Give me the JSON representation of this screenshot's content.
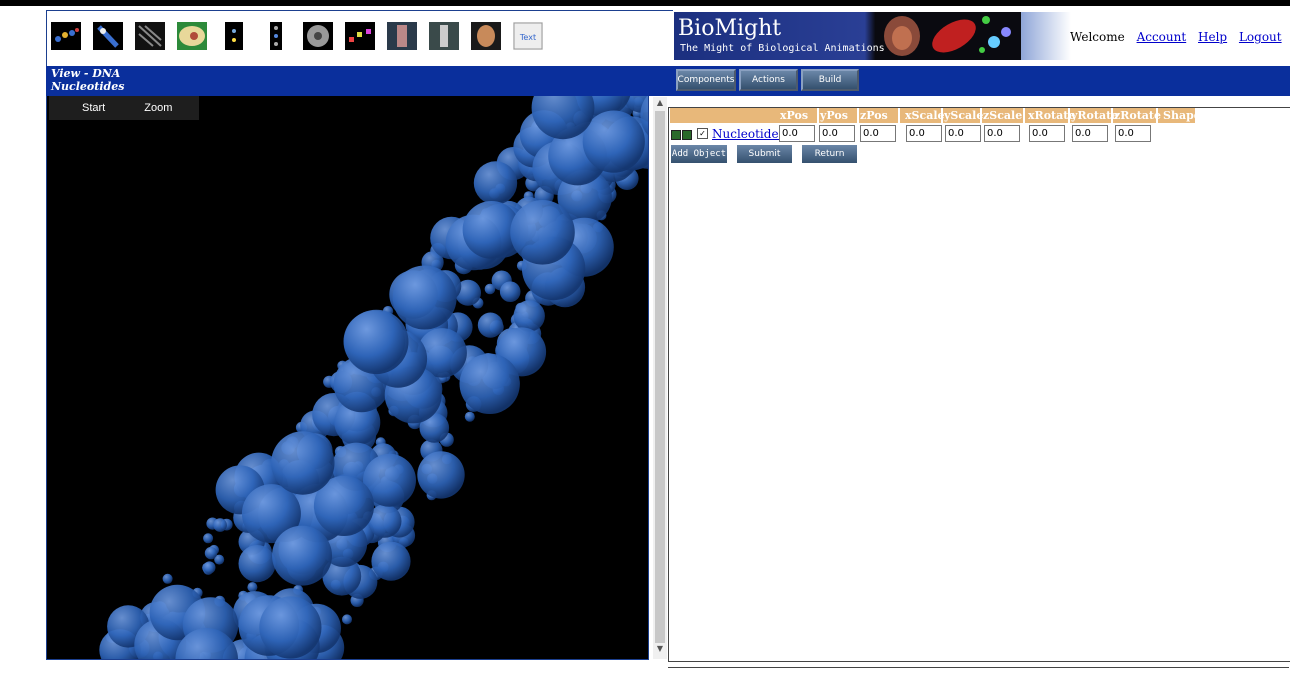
{
  "header": {
    "thumbnails": [
      "dna-strand-thumb",
      "spiral-thumb",
      "helix-thumb",
      "cell-thumb",
      "molecule-thumb",
      "nucleotide-chain-thumb",
      "sphere-thumb",
      "particles-thumb",
      "anatomy-thumb",
      "skeleton-thumb",
      "face-thumb",
      "text-thumb"
    ],
    "banner": {
      "title": "BioMight",
      "subtitle": "The Might of Biological Animations"
    },
    "welcome": "Welcome",
    "links": [
      "Account",
      "Help",
      "Logout"
    ]
  },
  "view": {
    "line1": "View - DNA",
    "line2": "Nucleotides"
  },
  "viewer": {
    "start": "Start",
    "zoom": "Zoom"
  },
  "toolbar": {
    "components": "Components",
    "actions": "Actions",
    "build": "Build"
  },
  "properties": {
    "columns": [
      "xPos",
      "yPos",
      "zPos",
      "xScale",
      "yScale",
      "zScale",
      "xRotate",
      "yRotate",
      "zRotate",
      "Shape"
    ],
    "component": "Nucleotides",
    "values": [
      "0.0",
      "0.0",
      "0.0",
      "0.0",
      "0.0",
      "0.0",
      "0.0",
      "0.0",
      "0.0"
    ],
    "buttons": {
      "add": "Add Object",
      "submit": "Submit",
      "return": "Return"
    }
  },
  "colors": {
    "bar": "#0a2f9c",
    "header_row": "#e8b87a",
    "sphere": "#2e64b8"
  }
}
